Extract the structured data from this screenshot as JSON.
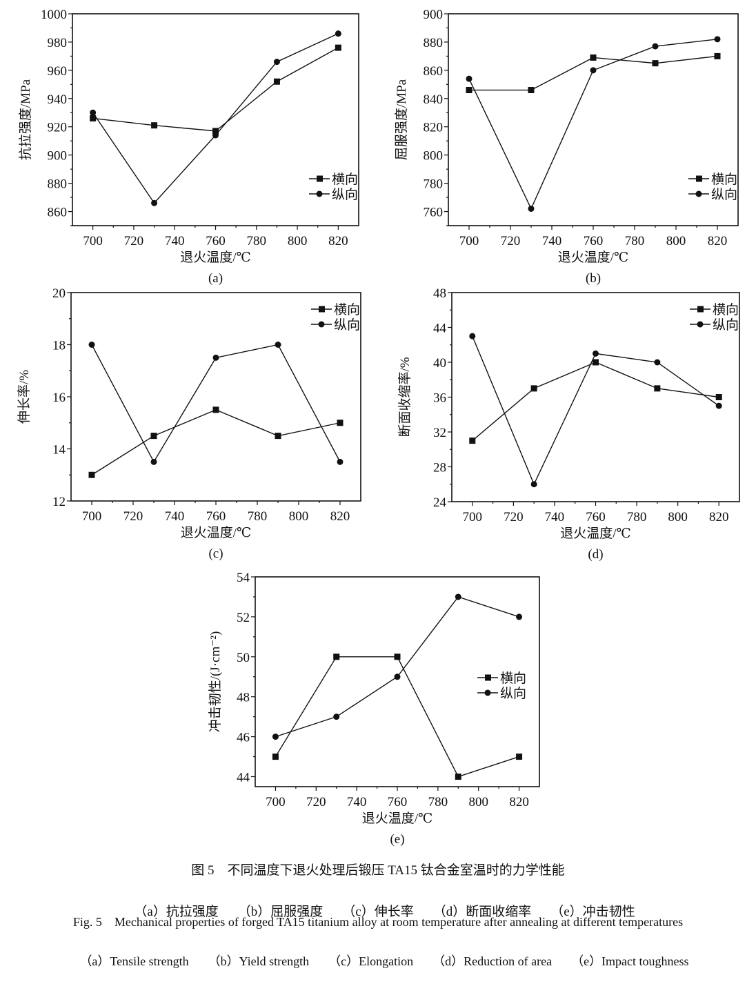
{
  "chart_data": [
    {
      "type": "line",
      "panel_label": "(a)",
      "xlabel": "退火温度/℃",
      "ylabel": "抗拉强度/MPa",
      "x": [
        700,
        730,
        760,
        790,
        820
      ],
      "xlim": [
        690,
        830
      ],
      "xticks": [
        700,
        720,
        740,
        760,
        780,
        800,
        820
      ],
      "ylim": [
        850,
        1000
      ],
      "yticks": [
        860,
        880,
        900,
        920,
        940,
        960,
        980,
        1000
      ],
      "legend": "bottom-right",
      "grid": false,
      "series": [
        {
          "name": "横向",
          "marker": "square",
          "values": [
            926,
            921,
            917,
            952,
            976
          ]
        },
        {
          "name": "纵向",
          "marker": "circle",
          "values": [
            930,
            866,
            914,
            966,
            986
          ]
        }
      ]
    },
    {
      "type": "line",
      "panel_label": "(b)",
      "xlabel": "退火温度/℃",
      "ylabel": "屈服强度/MPa",
      "x": [
        700,
        730,
        760,
        790,
        820
      ],
      "xlim": [
        690,
        830
      ],
      "xticks": [
        700,
        720,
        740,
        760,
        780,
        800,
        820
      ],
      "ylim": [
        750,
        900
      ],
      "yticks": [
        760,
        780,
        800,
        820,
        840,
        860,
        880,
        900
      ],
      "legend": "bottom-right",
      "grid": false,
      "series": [
        {
          "name": "横向",
          "marker": "square",
          "values": [
            846,
            846,
            869,
            865,
            870
          ]
        },
        {
          "name": "纵向",
          "marker": "circle",
          "values": [
            854,
            762,
            860,
            877,
            882
          ]
        }
      ]
    },
    {
      "type": "line",
      "panel_label": "(c)",
      "xlabel": "退火温度/℃",
      "ylabel": "伸长率/%",
      "x": [
        700,
        730,
        760,
        790,
        820
      ],
      "xlim": [
        690,
        830
      ],
      "xticks": [
        700,
        720,
        740,
        760,
        780,
        800,
        820
      ],
      "ylim": [
        12,
        20
      ],
      "yticks": [
        12,
        14,
        16,
        18,
        20
      ],
      "legend": "top-right",
      "grid": false,
      "series": [
        {
          "name": "横向",
          "marker": "square",
          "values": [
            13,
            14.5,
            15.5,
            14.5,
            15
          ]
        },
        {
          "name": "纵向",
          "marker": "circle",
          "values": [
            18,
            13.5,
            17.5,
            18,
            13.5
          ]
        }
      ]
    },
    {
      "type": "line",
      "panel_label": "(d)",
      "xlabel": "退火温度/℃",
      "ylabel": "断面收缩率/%",
      "x": [
        700,
        730,
        760,
        790,
        820
      ],
      "xlim": [
        690,
        830
      ],
      "xticks": [
        700,
        720,
        740,
        760,
        780,
        800,
        820
      ],
      "ylim": [
        24,
        48
      ],
      "yticks": [
        24,
        28,
        32,
        36,
        40,
        44,
        48
      ],
      "legend": "top-right",
      "grid": false,
      "series": [
        {
          "name": "横向",
          "marker": "square",
          "values": [
            31,
            37,
            40,
            37,
            36
          ]
        },
        {
          "name": "纵向",
          "marker": "circle",
          "values": [
            43,
            26,
            41,
            40,
            35
          ]
        }
      ]
    },
    {
      "type": "line",
      "panel_label": "(e)",
      "xlabel": "退火温度/℃",
      "ylabel": "冲击韧性/(J·cm⁻²)",
      "x": [
        700,
        730,
        760,
        790,
        820
      ],
      "xlim": [
        690,
        830
      ],
      "xticks": [
        700,
        720,
        740,
        760,
        780,
        800,
        820
      ],
      "ylim": [
        43.5,
        54
      ],
      "yticks": [
        44,
        46,
        48,
        50,
        52,
        54
      ],
      "legend": "center-right",
      "grid": false,
      "series": [
        {
          "name": "横向",
          "marker": "square",
          "values": [
            45,
            50,
            50,
            44,
            45
          ]
        },
        {
          "name": "纵向",
          "marker": "circle",
          "values": [
            46,
            47,
            49,
            53,
            52
          ]
        }
      ]
    }
  ],
  "caption": {
    "cn_title": "图 5　不同温度下退火处理后锻压 TA15 钛合金室温时的力学性能",
    "cn_items": [
      "（a）抗拉强度",
      "（b）屈服强度",
      "（c）伸长率",
      "（d）断面收缩率",
      "（e）冲击韧性"
    ],
    "en_title": "Fig. 5　Mechanical properties of forged TA15 titanium alloy at room temperature after annealing at different temperatures",
    "en_items": [
      "（a）Tensile strength",
      "（b）Yield strength",
      "（c）Elongation",
      "（d）Reduction of area",
      "（e）Impact toughness"
    ]
  }
}
